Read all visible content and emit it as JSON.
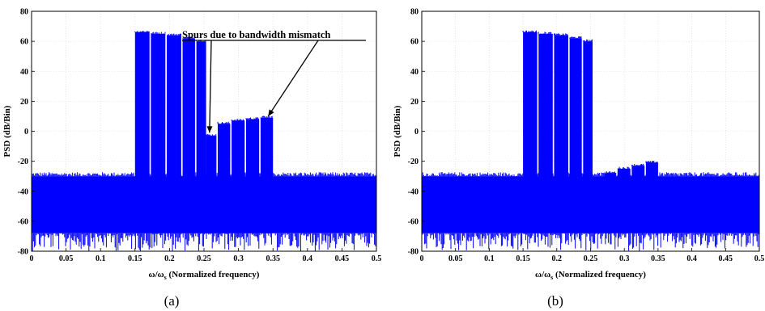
{
  "chart_data": [
    {
      "type": "area",
      "panel_label": "(a)",
      "xlabel_main": "ω/ω",
      "xlabel_sub": "s",
      "xlabel_rest": " (Normalized frequency)",
      "ylabel": "PSD (dB/Bin)",
      "xlim": [
        0,
        0.5
      ],
      "ylim": [
        -80,
        80
      ],
      "xticks": [
        "0",
        "0.05",
        "0.1",
        "0.15",
        "0.2",
        "0.25",
        "0.3",
        "0.35",
        "0.4",
        "0.45",
        "0.5"
      ],
      "yticks": [
        "80",
        "60",
        "40",
        "20",
        "0",
        "-20",
        "-40",
        "-60",
        "-80"
      ],
      "grid": true,
      "series_color": "#0000ff",
      "noise_floor": {
        "top": -30,
        "bottom": -68
      },
      "bands": [
        {
          "x_start": 0.15,
          "x_end": 0.171,
          "top": 66
        },
        {
          "x_start": 0.173,
          "x_end": 0.194,
          "top": 65
        },
        {
          "x_start": 0.196,
          "x_end": 0.217,
          "top": 64
        },
        {
          "x_start": 0.219,
          "x_end": 0.237,
          "top": 62
        },
        {
          "x_start": 0.239,
          "x_end": 0.253,
          "top": 60
        }
      ],
      "spurs": [
        {
          "x_start": 0.253,
          "x_end": 0.268,
          "top": -3
        },
        {
          "x_start": 0.27,
          "x_end": 0.288,
          "top": 5
        },
        {
          "x_start": 0.29,
          "x_end": 0.309,
          "top": 7
        },
        {
          "x_start": 0.311,
          "x_end": 0.33,
          "top": 8
        },
        {
          "x_start": 0.332,
          "x_end": 0.35,
          "top": 9
        }
      ],
      "annotation": {
        "text": "Spurs due to bandwidth mismatch",
        "arrow_targets": [
          [
            0.258,
            -1
          ],
          [
            0.343,
            10
          ]
        ]
      }
    },
    {
      "type": "area",
      "panel_label": "(b)",
      "xlabel_main": "ω/ω",
      "xlabel_sub": "s",
      "xlabel_rest": " (Normalized frequency)",
      "ylabel": "PSD (dB/Bin)",
      "xlim": [
        0,
        0.5
      ],
      "ylim": [
        -80,
        80
      ],
      "xticks": [
        "0",
        "0.05",
        "0.1",
        "0.15",
        "0.2",
        "0.25",
        "0.3",
        "0.35",
        "0.4",
        "0.45",
        "0.5"
      ],
      "yticks": [
        "80",
        "60",
        "40",
        "20",
        "0",
        "-20",
        "-40",
        "-60",
        "-80"
      ],
      "grid": true,
      "series_color": "#0000ff",
      "noise_floor": {
        "top": -30,
        "bottom": -68
      },
      "bands": [
        {
          "x_start": 0.15,
          "x_end": 0.171,
          "top": 66
        },
        {
          "x_start": 0.173,
          "x_end": 0.194,
          "top": 65
        },
        {
          "x_start": 0.196,
          "x_end": 0.217,
          "top": 64
        },
        {
          "x_start": 0.219,
          "x_end": 0.237,
          "top": 62
        },
        {
          "x_start": 0.239,
          "x_end": 0.253,
          "top": 60
        }
      ],
      "spurs": [
        {
          "x_start": 0.253,
          "x_end": 0.268,
          "top": -34
        },
        {
          "x_start": 0.27,
          "x_end": 0.288,
          "top": -28
        },
        {
          "x_start": 0.29,
          "x_end": 0.309,
          "top": -25
        },
        {
          "x_start": 0.311,
          "x_end": 0.33,
          "top": -23
        },
        {
          "x_start": 0.332,
          "x_end": 0.35,
          "top": -21
        }
      ]
    }
  ]
}
